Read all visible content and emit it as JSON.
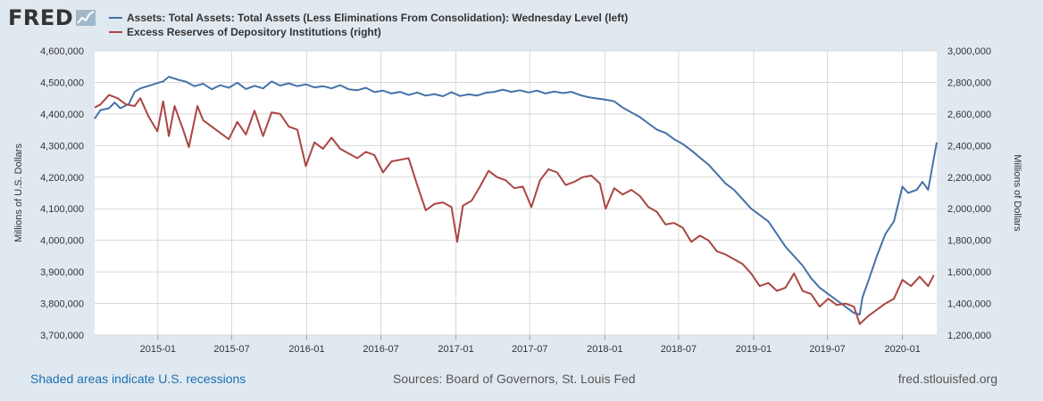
{
  "logo": {
    "text": "FRED",
    "icon": "fred-chart-icon"
  },
  "colors": {
    "assets": "#4572a7",
    "reserves": "#aa4643",
    "grid": "#d8d8d8",
    "background": "#e1e9f0",
    "plot_background": "#ffffff"
  },
  "footer": {
    "recessions_note": "Shaded areas indicate U.S. recessions",
    "sources": "Sources: Board of Governors, St. Louis Fed",
    "site": "fred.stlouisfed.org"
  },
  "chart_data": {
    "type": "line",
    "title": "",
    "x_ticks": [
      "2015-01",
      "2015-07",
      "2016-01",
      "2016-07",
      "2017-01",
      "2017-07",
      "2018-01",
      "2018-07",
      "2019-01",
      "2019-07",
      "2020-01"
    ],
    "x_range": [
      "2014-07-30",
      "2020-03-25"
    ],
    "ylabel_left": "Millions of U.S. Dollars",
    "ylabel_right": "Millions of Dollars",
    "ylim_left": [
      3700000,
      4600000
    ],
    "ylim_right": [
      1200000,
      3000000
    ],
    "y_ticks_left": [
      "3,700,000",
      "3,800,000",
      "3,900,000",
      "4,000,000",
      "4,100,000",
      "4,200,000",
      "4,300,000",
      "4,400,000",
      "4,500,000",
      "4,600,000"
    ],
    "y_ticks_right": [
      "1,200,000",
      "1,400,000",
      "1,600,000",
      "1,800,000",
      "2,000,000",
      "2,200,000",
      "2,400,000",
      "2,600,000",
      "2,800,000",
      "3,000,000"
    ],
    "series": [
      {
        "name": "Assets: Total Assets: Total Assets (Less Eliminations From Consolidation): Wednesday Level (left)",
        "axis": "left",
        "points": [
          [
            "2014-07-30",
            4385000
          ],
          [
            "2014-08-13",
            4412000
          ],
          [
            "2014-09-03",
            4418000
          ],
          [
            "2014-09-17",
            4436000
          ],
          [
            "2014-10-01",
            4418000
          ],
          [
            "2014-10-22",
            4432000
          ],
          [
            "2014-11-05",
            4470000
          ],
          [
            "2014-11-19",
            4481000
          ],
          [
            "2014-12-10",
            4489000
          ],
          [
            "2014-12-31",
            4498000
          ],
          [
            "2015-01-14",
            4503000
          ],
          [
            "2015-01-28",
            4518000
          ],
          [
            "2015-02-18",
            4509000
          ],
          [
            "2015-03-11",
            4502000
          ],
          [
            "2015-04-01",
            4488000
          ],
          [
            "2015-04-22",
            4496000
          ],
          [
            "2015-05-13",
            4478000
          ],
          [
            "2015-06-03",
            4491000
          ],
          [
            "2015-06-24",
            4483000
          ],
          [
            "2015-07-15",
            4499000
          ],
          [
            "2015-08-05",
            4479000
          ],
          [
            "2015-08-26",
            4489000
          ],
          [
            "2015-09-16",
            4481000
          ],
          [
            "2015-10-07",
            4503000
          ],
          [
            "2015-10-28",
            4490000
          ],
          [
            "2015-11-18",
            4497000
          ],
          [
            "2015-12-09",
            4488000
          ],
          [
            "2015-12-30",
            4494000
          ],
          [
            "2016-01-20",
            4484000
          ],
          [
            "2016-02-10",
            4488000
          ],
          [
            "2016-03-02",
            4481000
          ],
          [
            "2016-03-23",
            4491000
          ],
          [
            "2016-04-13",
            4478000
          ],
          [
            "2016-05-04",
            4475000
          ],
          [
            "2016-05-25",
            4483000
          ],
          [
            "2016-06-15",
            4469000
          ],
          [
            "2016-07-06",
            4474000
          ],
          [
            "2016-07-27",
            4465000
          ],
          [
            "2016-08-17",
            4470000
          ],
          [
            "2016-09-07",
            4460000
          ],
          [
            "2016-09-28",
            4468000
          ],
          [
            "2016-10-19",
            4458000
          ],
          [
            "2016-11-09",
            4463000
          ],
          [
            "2016-11-30",
            4456000
          ],
          [
            "2016-12-21",
            4469000
          ],
          [
            "2017-01-11",
            4457000
          ],
          [
            "2017-02-01",
            4462000
          ],
          [
            "2017-02-22",
            4458000
          ],
          [
            "2017-03-15",
            4467000
          ],
          [
            "2017-04-05",
            4470000
          ],
          [
            "2017-04-26",
            4477000
          ],
          [
            "2017-05-17",
            4470000
          ],
          [
            "2017-06-07",
            4475000
          ],
          [
            "2017-06-28",
            4468000
          ],
          [
            "2017-07-19",
            4474000
          ],
          [
            "2017-08-09",
            4465000
          ],
          [
            "2017-08-30",
            4471000
          ],
          [
            "2017-09-20",
            4466000
          ],
          [
            "2017-10-11",
            4470000
          ],
          [
            "2017-11-01",
            4460000
          ],
          [
            "2017-11-22",
            4453000
          ],
          [
            "2017-12-13",
            4449000
          ],
          [
            "2018-01-03",
            4445000
          ],
          [
            "2018-01-24",
            4440000
          ],
          [
            "2018-02-14",
            4420000
          ],
          [
            "2018-03-07",
            4405000
          ],
          [
            "2018-03-28",
            4390000
          ],
          [
            "2018-04-18",
            4370000
          ],
          [
            "2018-05-09",
            4350000
          ],
          [
            "2018-05-30",
            4340000
          ],
          [
            "2018-06-20",
            4320000
          ],
          [
            "2018-07-11",
            4305000
          ],
          [
            "2018-08-01",
            4285000
          ],
          [
            "2018-08-22",
            4262000
          ],
          [
            "2018-09-12",
            4240000
          ],
          [
            "2018-10-03",
            4210000
          ],
          [
            "2018-10-24",
            4180000
          ],
          [
            "2018-11-14",
            4160000
          ],
          [
            "2018-12-05",
            4130000
          ],
          [
            "2018-12-26",
            4100000
          ],
          [
            "2019-01-16",
            4080000
          ],
          [
            "2019-02-06",
            4060000
          ],
          [
            "2019-02-27",
            4020000
          ],
          [
            "2019-03-20",
            3980000
          ],
          [
            "2019-04-10",
            3950000
          ],
          [
            "2019-05-01",
            3920000
          ],
          [
            "2019-05-22",
            3880000
          ],
          [
            "2019-06-12",
            3850000
          ],
          [
            "2019-07-03",
            3830000
          ],
          [
            "2019-07-24",
            3810000
          ],
          [
            "2019-08-14",
            3790000
          ],
          [
            "2019-09-04",
            3770000
          ],
          [
            "2019-09-18",
            3765000
          ],
          [
            "2019-09-25",
            3820000
          ],
          [
            "2019-10-09",
            3870000
          ],
          [
            "2019-10-30",
            3950000
          ],
          [
            "2019-11-20",
            4020000
          ],
          [
            "2019-12-11",
            4060000
          ],
          [
            "2020-01-01",
            4170000
          ],
          [
            "2020-01-15",
            4150000
          ],
          [
            "2020-02-05",
            4160000
          ],
          [
            "2020-02-19",
            4185000
          ],
          [
            "2020-03-04",
            4160000
          ],
          [
            "2020-03-25",
            4310000
          ]
        ]
      },
      {
        "name": "Excess Reserves of Depository Institutions (right)",
        "axis": "right",
        "points": [
          [
            "2014-07-30",
            2640000
          ],
          [
            "2014-08-13",
            2660000
          ],
          [
            "2014-09-03",
            2720000
          ],
          [
            "2014-09-24",
            2700000
          ],
          [
            "2014-10-15",
            2660000
          ],
          [
            "2014-11-05",
            2650000
          ],
          [
            "2014-11-19",
            2700000
          ],
          [
            "2014-12-10",
            2580000
          ],
          [
            "2014-12-31",
            2490000
          ],
          [
            "2015-01-14",
            2680000
          ],
          [
            "2015-01-28",
            2460000
          ],
          [
            "2015-02-11",
            2650000
          ],
          [
            "2015-03-04",
            2500000
          ],
          [
            "2015-03-18",
            2390000
          ],
          [
            "2015-04-08",
            2650000
          ],
          [
            "2015-04-22",
            2560000
          ],
          [
            "2015-05-13",
            2520000
          ],
          [
            "2015-06-03",
            2480000
          ],
          [
            "2015-06-24",
            2440000
          ],
          [
            "2015-07-15",
            2550000
          ],
          [
            "2015-08-05",
            2470000
          ],
          [
            "2015-08-26",
            2620000
          ],
          [
            "2015-09-16",
            2460000
          ],
          [
            "2015-10-07",
            2610000
          ],
          [
            "2015-10-28",
            2600000
          ],
          [
            "2015-11-18",
            2520000
          ],
          [
            "2015-12-09",
            2500000
          ],
          [
            "2015-12-30",
            2270000
          ],
          [
            "2016-01-20",
            2420000
          ],
          [
            "2016-02-10",
            2380000
          ],
          [
            "2016-03-02",
            2450000
          ],
          [
            "2016-03-23",
            2380000
          ],
          [
            "2016-04-13",
            2350000
          ],
          [
            "2016-05-04",
            2320000
          ],
          [
            "2016-05-25",
            2360000
          ],
          [
            "2016-06-15",
            2340000
          ],
          [
            "2016-07-06",
            2230000
          ],
          [
            "2016-07-27",
            2300000
          ],
          [
            "2016-08-17",
            2310000
          ],
          [
            "2016-09-07",
            2320000
          ],
          [
            "2016-09-28",
            2150000
          ],
          [
            "2016-10-19",
            1990000
          ],
          [
            "2016-11-09",
            2030000
          ],
          [
            "2016-11-30",
            2040000
          ],
          [
            "2016-12-21",
            2010000
          ],
          [
            "2017-01-04",
            1790000
          ],
          [
            "2017-01-18",
            2020000
          ],
          [
            "2017-02-08",
            2050000
          ],
          [
            "2017-03-01",
            2140000
          ],
          [
            "2017-03-22",
            2240000
          ],
          [
            "2017-04-12",
            2200000
          ],
          [
            "2017-05-03",
            2180000
          ],
          [
            "2017-05-24",
            2130000
          ],
          [
            "2017-06-14",
            2140000
          ],
          [
            "2017-07-05",
            2010000
          ],
          [
            "2017-07-26",
            2180000
          ],
          [
            "2017-08-16",
            2250000
          ],
          [
            "2017-09-06",
            2230000
          ],
          [
            "2017-09-27",
            2150000
          ],
          [
            "2017-10-18",
            2170000
          ],
          [
            "2017-11-08",
            2200000
          ],
          [
            "2017-11-29",
            2210000
          ],
          [
            "2017-12-20",
            2160000
          ],
          [
            "2018-01-03",
            2000000
          ],
          [
            "2018-01-24",
            2130000
          ],
          [
            "2018-02-14",
            2090000
          ],
          [
            "2018-03-07",
            2120000
          ],
          [
            "2018-03-28",
            2080000
          ],
          [
            "2018-04-18",
            2010000
          ],
          [
            "2018-05-09",
            1980000
          ],
          [
            "2018-05-30",
            1900000
          ],
          [
            "2018-06-20",
            1910000
          ],
          [
            "2018-07-11",
            1880000
          ],
          [
            "2018-08-01",
            1790000
          ],
          [
            "2018-08-22",
            1830000
          ],
          [
            "2018-09-12",
            1800000
          ],
          [
            "2018-10-03",
            1730000
          ],
          [
            "2018-10-24",
            1710000
          ],
          [
            "2018-11-14",
            1680000
          ],
          [
            "2018-12-05",
            1650000
          ],
          [
            "2018-12-26",
            1590000
          ],
          [
            "2019-01-16",
            1510000
          ],
          [
            "2019-02-06",
            1530000
          ],
          [
            "2019-02-27",
            1480000
          ],
          [
            "2019-03-20",
            1500000
          ],
          [
            "2019-04-10",
            1590000
          ],
          [
            "2019-05-01",
            1480000
          ],
          [
            "2019-05-22",
            1460000
          ],
          [
            "2019-06-12",
            1380000
          ],
          [
            "2019-07-03",
            1430000
          ],
          [
            "2019-07-24",
            1390000
          ],
          [
            "2019-08-14",
            1400000
          ],
          [
            "2019-09-04",
            1380000
          ],
          [
            "2019-09-18",
            1270000
          ],
          [
            "2019-10-09",
            1320000
          ],
          [
            "2019-10-30",
            1360000
          ],
          [
            "2019-11-20",
            1400000
          ],
          [
            "2019-12-11",
            1430000
          ],
          [
            "2020-01-01",
            1550000
          ],
          [
            "2020-01-22",
            1510000
          ],
          [
            "2020-02-12",
            1570000
          ],
          [
            "2020-03-04",
            1510000
          ],
          [
            "2020-03-18",
            1580000
          ]
        ]
      }
    ]
  }
}
